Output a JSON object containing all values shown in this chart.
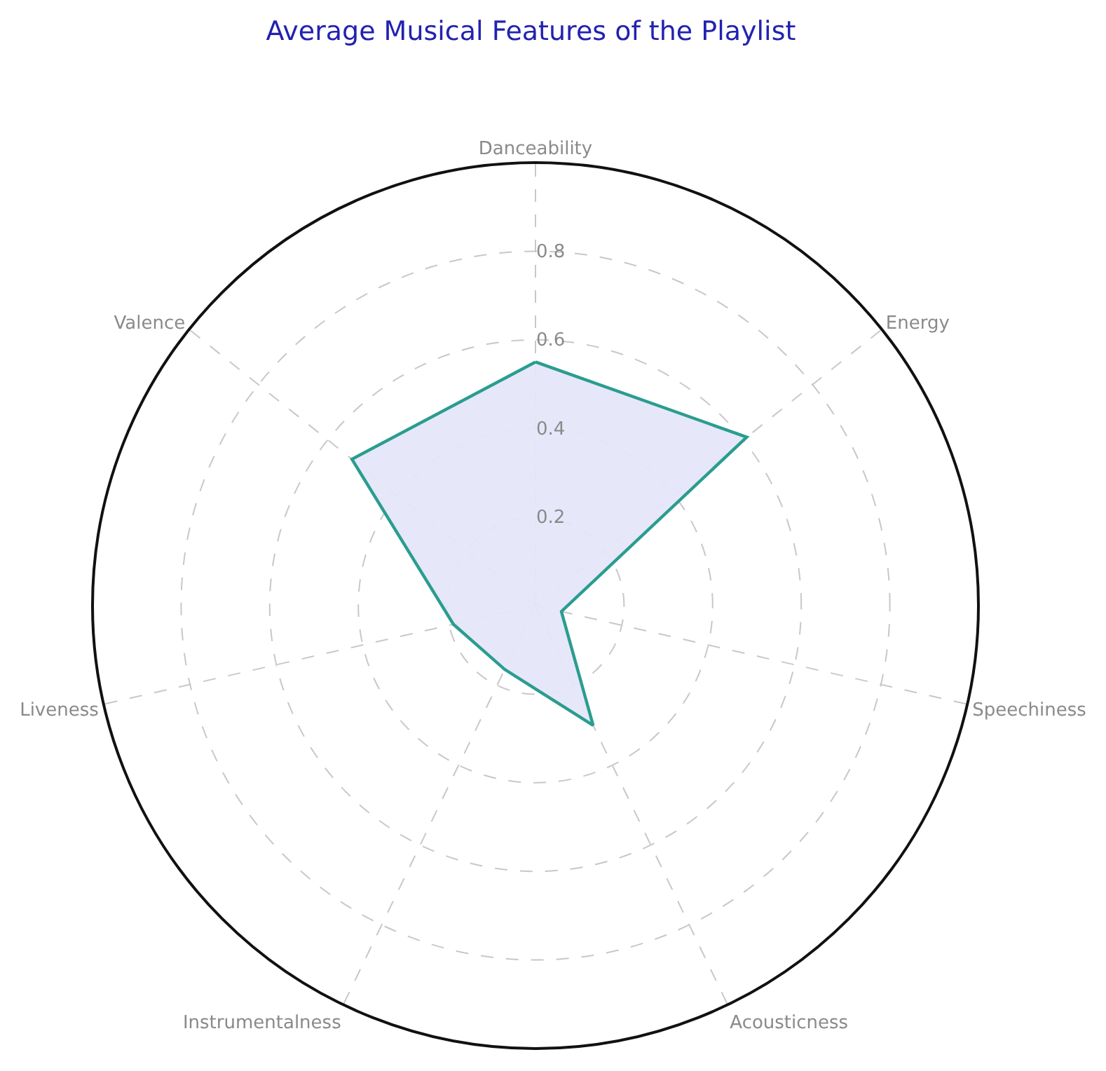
{
  "chart_data": {
    "type": "radar",
    "title": "Average Musical Features of the Playlist",
    "categories": [
      "Danceability",
      "Energy",
      "Speechiness",
      "Acousticness",
      "Instrumentalness",
      "Liveness",
      "Valence"
    ],
    "series": [
      {
        "color": "#2a9d8f",
        "values": [
          0.55,
          0.61,
          0.06,
          0.3,
          0.16,
          0.19,
          0.53
        ]
      }
    ],
    "ylim": [
      0,
      1
    ],
    "yticks": [
      0.2,
      0.4,
      0.6,
      0.8
    ],
    "grid": true,
    "marker": "none",
    "line_style": "solid"
  }
}
